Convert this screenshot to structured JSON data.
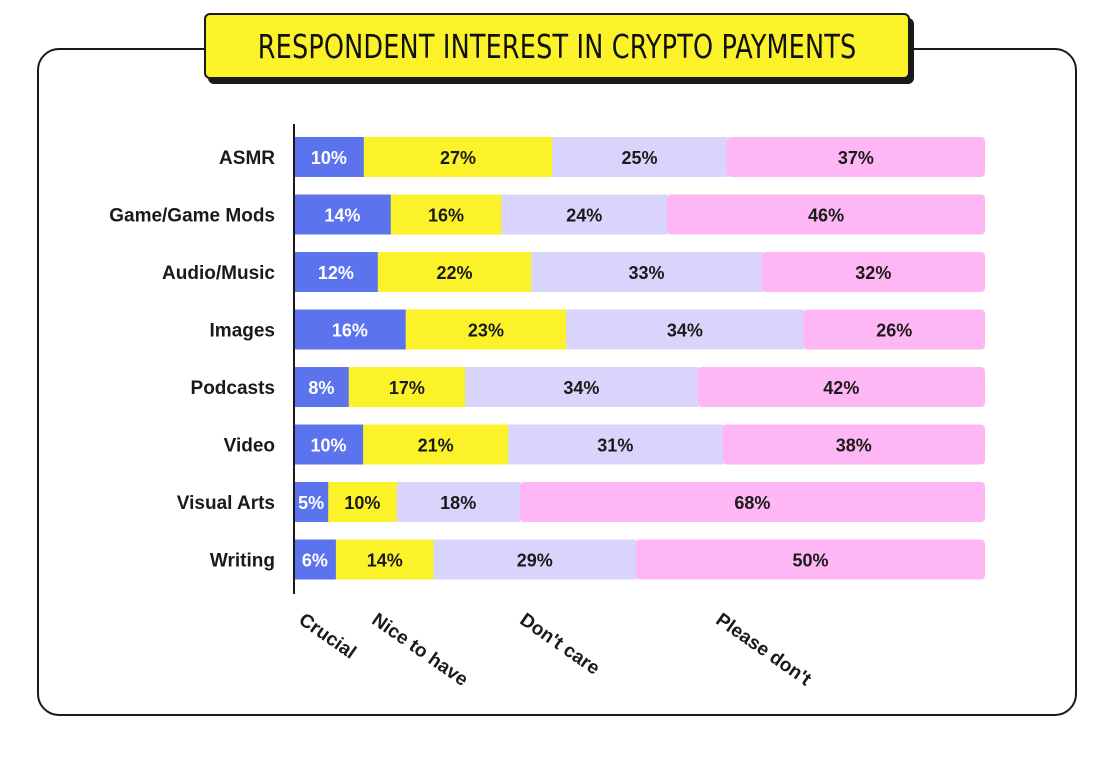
{
  "chart_data": {
    "type": "bar",
    "orientation": "horizontal",
    "stacked": true,
    "title": "RESPONDENT INTEREST IN CRYPTO PAYMENTS",
    "categories": [
      "ASMR",
      "Game/Game Mods",
      "Audio/Music",
      "Images",
      "Podcasts",
      "Video",
      "Visual Arts",
      "Writing"
    ],
    "series": [
      {
        "name": "Crucial",
        "color": "#5b74ee",
        "label_color": "#ffffff",
        "values": [
          10,
          14,
          12,
          16,
          8,
          10,
          5,
          6
        ]
      },
      {
        "name": "Nice to have",
        "color": "#fbf22a",
        "label_color": "#1a1a1a",
        "values": [
          27,
          16,
          22,
          23,
          17,
          21,
          10,
          14
        ]
      },
      {
        "name": "Don't care",
        "color": "#d9d4fc",
        "label_color": "#1a1a1a",
        "values": [
          25,
          24,
          33,
          34,
          34,
          31,
          18,
          29
        ]
      },
      {
        "name": "Please don't",
        "color": "#ffb6f4",
        "label_color": "#1a1a1a",
        "values": [
          37,
          46,
          32,
          26,
          42,
          38,
          68,
          50
        ]
      }
    ],
    "value_suffix": "%",
    "legend_position": "bottom",
    "grid": false
  }
}
